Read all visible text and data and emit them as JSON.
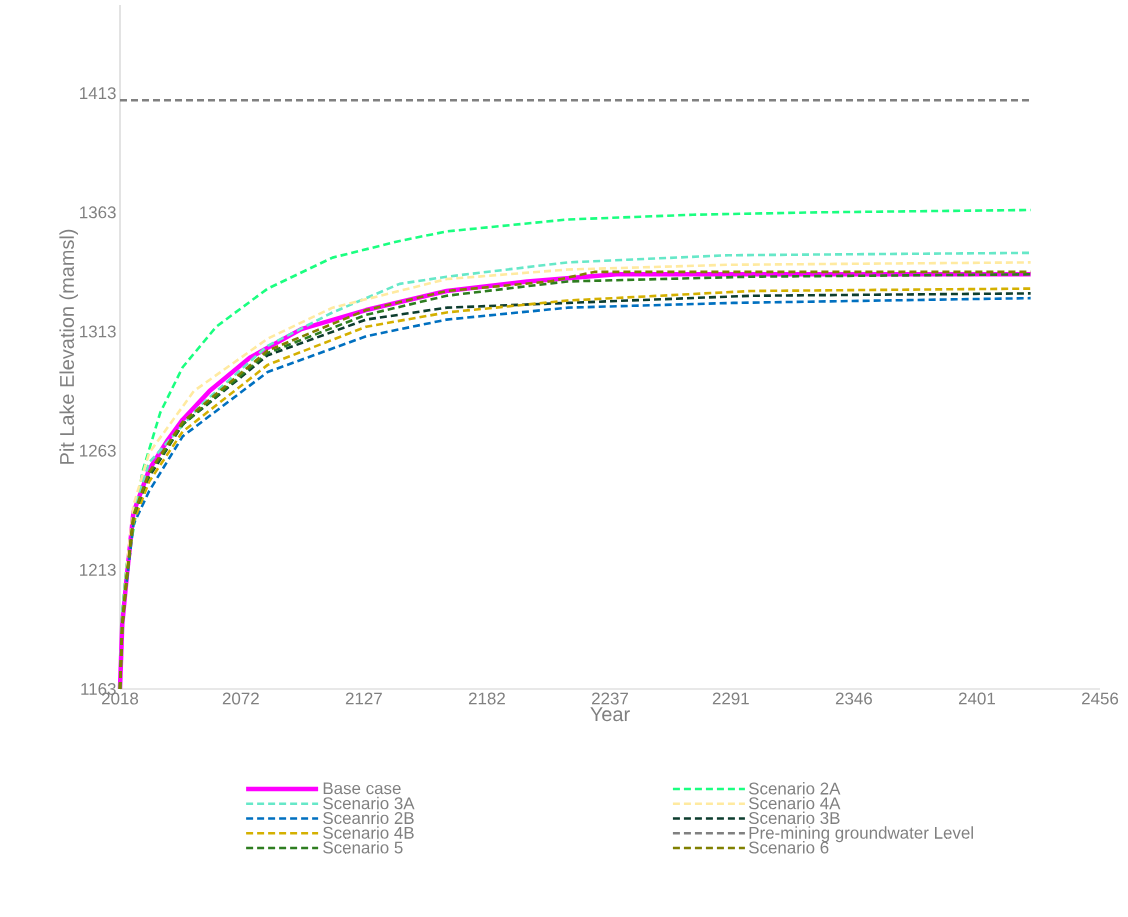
{
  "chart_data": {
    "type": "line",
    "xlabel": "Year",
    "ylabel": "Pit Lake Elevation (mamsl)",
    "xlim": [
      2018,
      2456
    ],
    "ylim": [
      1163,
      1450
    ],
    "xticks": [
      2018,
      2072,
      2127,
      2182,
      2237,
      2291,
      2346,
      2401,
      2456
    ],
    "yticks": [
      1163,
      1213,
      1263,
      1313,
      1363,
      1413
    ],
    "legend": "bottom",
    "series": [
      {
        "name": "Base case",
        "color": "#ff00ff",
        "line_style": "solid",
        "x": [
          2018,
          2019,
          2021,
          2024,
          2031,
          2039,
          2046,
          2058,
          2076,
          2099,
          2128,
          2164,
          2200,
          2240,
          2311,
          2425
        ],
        "values": [
          1163,
          1190,
          1210,
          1237,
          1255,
          1267,
          1276,
          1288,
          1302,
          1314,
          1322,
          1330,
          1334,
          1337,
          1337,
          1337
        ]
      },
      {
        "name": "Scenario 2A",
        "color": "#1aff80",
        "line_style": "dashed",
        "x": [
          2018,
          2019,
          2021,
          2024,
          2028,
          2036,
          2046,
          2061,
          2084,
          2113,
          2143,
          2164,
          2218,
          2274,
          2330,
          2425
        ],
        "values": [
          1163,
          1195,
          1215,
          1230,
          1254,
          1279,
          1298,
          1315,
          1331,
          1344,
          1351,
          1355,
          1360,
          1362,
          1363,
          1364
        ]
      },
      {
        "name": "Scenario 3A",
        "color": "#66e8c8",
        "line_style": "dashed",
        "x": [
          2018,
          2019,
          2021,
          2024,
          2031,
          2054,
          2084,
          2113,
          2143,
          2164,
          2218,
          2290,
          2425
        ],
        "values": [
          1163,
          1190,
          1212,
          1238,
          1258,
          1282,
          1307,
          1321,
          1333,
          1336,
          1342,
          1345,
          1346
        ]
      },
      {
        "name": "Scenario 4A",
        "color": "#ffeaa0",
        "line_style": "dashed",
        "x": [
          2018,
          2019,
          2021,
          2024,
          2031,
          2051,
          2084,
          2113,
          2164,
          2218,
          2290,
          2425
        ],
        "values": [
          1163,
          1192,
          1214,
          1240,
          1262,
          1288,
          1310,
          1323,
          1335,
          1339,
          1341,
          1342
        ]
      },
      {
        "name": "Sceanrio 2B",
        "color": "#0070c0",
        "line_style": "dashed",
        "x": [
          2021,
          2024,
          2031,
          2046,
          2084,
          2128,
          2164,
          2218,
          2292,
          2425
        ],
        "values": [
          1208,
          1232,
          1246,
          1269,
          1296,
          1311,
          1318,
          1323,
          1325,
          1327
        ]
      },
      {
        "name": "Scenario 3B",
        "color": "#0d3d2e",
        "line_style": "dashed",
        "x": [
          2018,
          2019,
          2021,
          2024,
          2031,
          2046,
          2084,
          2128,
          2164,
          2218,
          2300,
          2425
        ],
        "values": [
          1163,
          1190,
          1210,
          1234,
          1252,
          1274,
          1303,
          1318,
          1323,
          1325,
          1328,
          1329
        ]
      },
      {
        "name": "Scenario 4B",
        "color": "#d4b000",
        "line_style": "dashed",
        "x": [
          2018,
          2019,
          2021,
          2024,
          2031,
          2046,
          2084,
          2128,
          2164,
          2218,
          2300,
          2425
        ],
        "values": [
          1163,
          1189,
          1209,
          1233,
          1250,
          1271,
          1299,
          1315,
          1321,
          1326,
          1330,
          1331
        ]
      },
      {
        "name": "Pre-mining groundwater Level",
        "color": "#808080",
        "line_style": "dashed",
        "x": [
          2018,
          2425
        ],
        "values": [
          1410,
          1410
        ]
      },
      {
        "name": "Scenario 5",
        "color": "#2e7d20",
        "line_style": "dashed",
        "x": [
          2018,
          2019,
          2021,
          2024,
          2031,
          2046,
          2084,
          2128,
          2164,
          2218,
          2300,
          2425
        ],
        "values": [
          1163,
          1189,
          1209,
          1235,
          1253,
          1274,
          1304,
          1320,
          1328,
          1334,
          1336,
          1337
        ]
      },
      {
        "name": "Scenario 6",
        "color": "#808000",
        "line_style": "dashed",
        "x": [
          2018,
          2019,
          2021,
          2024,
          2031,
          2046,
          2084,
          2128,
          2164,
          2210,
          2230,
          2425
        ],
        "values": [
          1163,
          1190,
          1210,
          1236,
          1254,
          1275,
          1305,
          1322,
          1330,
          1334,
          1338,
          1338
        ]
      }
    ]
  }
}
